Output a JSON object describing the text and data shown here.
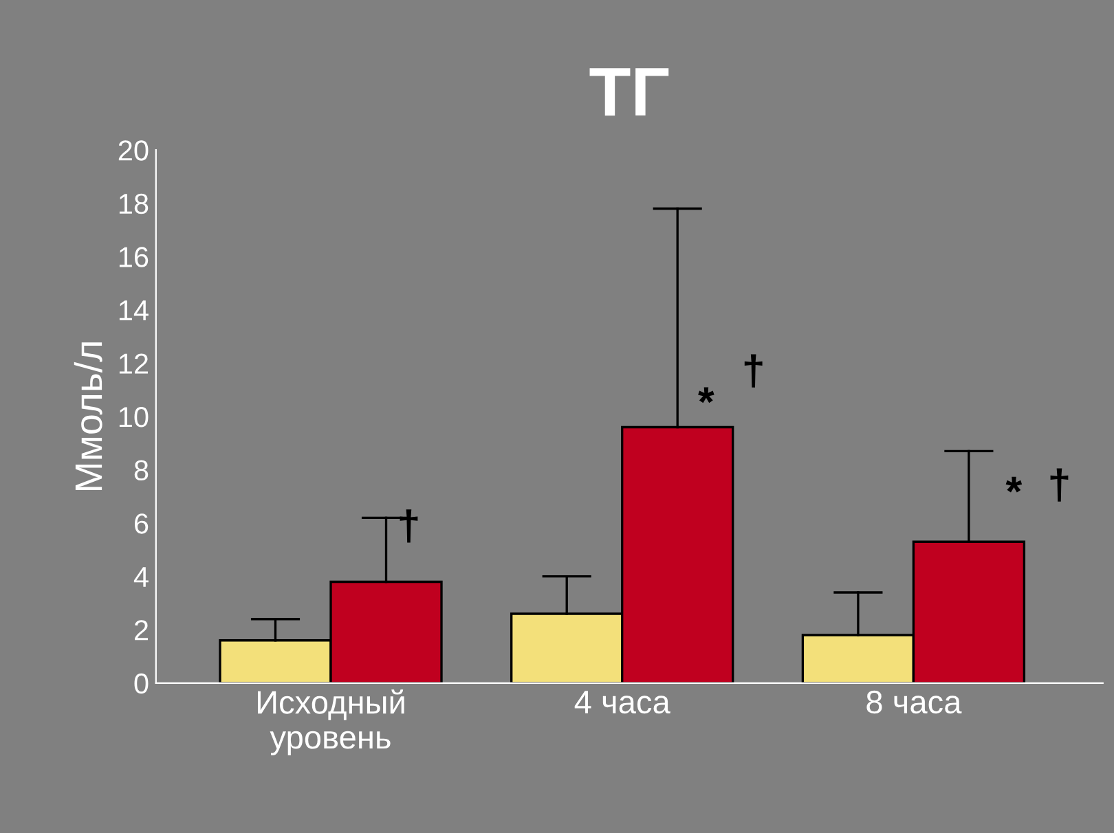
{
  "chart_data": {
    "type": "bar",
    "title": "ТГ",
    "ylabel": "Ммоль/л",
    "categories": [
      "Исходный\nуровень",
      "4 часа",
      "8 часа"
    ],
    "series": [
      {
        "color": "#f3e07a",
        "values": [
          1.6,
          2.6,
          1.8
        ],
        "errors": [
          [
            1.6,
            2.4
          ],
          [
            2.6,
            4.0
          ],
          [
            1.8,
            3.4
          ]
        ]
      },
      {
        "color": "#c0001f",
        "values": [
          3.8,
          9.6,
          5.3
        ],
        "errors": [
          [
            3.8,
            6.2
          ],
          [
            9.6,
            17.8
          ],
          [
            5.3,
            8.7
          ]
        ]
      }
    ],
    "ylim": [
      0,
      20
    ],
    "yticks": [
      0,
      2,
      4,
      6,
      8,
      10,
      12,
      14,
      16,
      18,
      20
    ],
    "grid": false,
    "legend": false,
    "annotations": [
      "†",
      "*",
      "†",
      "*",
      "†"
    ]
  }
}
